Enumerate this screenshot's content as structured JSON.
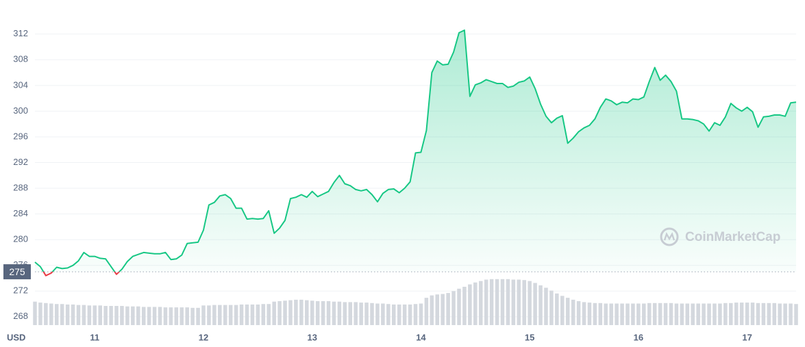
{
  "chart_data": {
    "type": "line",
    "axis_unit": "USD",
    "watermark": "CoinMarketCap",
    "baseline": 275,
    "grid": true,
    "x": [
      10.45,
      10.5,
      10.55,
      10.6,
      10.65,
      10.7,
      10.75,
      10.8,
      10.85,
      10.9,
      10.95,
      11.0,
      11.05,
      11.1,
      11.15,
      11.2,
      11.25,
      11.3,
      11.35,
      11.4,
      11.45,
      11.5,
      11.55,
      11.6,
      11.65,
      11.7,
      11.75,
      11.8,
      11.85,
      11.9,
      11.95,
      12.0,
      12.05,
      12.1,
      12.15,
      12.2,
      12.25,
      12.3,
      12.35,
      12.4,
      12.45,
      12.5,
      12.55,
      12.6,
      12.65,
      12.7,
      12.75,
      12.8,
      12.85,
      12.9,
      12.95,
      13.0,
      13.05,
      13.1,
      13.15,
      13.2,
      13.25,
      13.3,
      13.35,
      13.4,
      13.45,
      13.5,
      13.55,
      13.6,
      13.65,
      13.7,
      13.75,
      13.8,
      13.85,
      13.9,
      13.95,
      14.0,
      14.05,
      14.1,
      14.15,
      14.2,
      14.25,
      14.3,
      14.35,
      14.4,
      14.45,
      14.5,
      14.55,
      14.6,
      14.65,
      14.7,
      14.75,
      14.8,
      14.85,
      14.9,
      14.95,
      15.0,
      15.05,
      15.1,
      15.15,
      15.2,
      15.25,
      15.3,
      15.35,
      15.4,
      15.45,
      15.5,
      15.55,
      15.6,
      15.65,
      15.7,
      15.75,
      15.8,
      15.85,
      15.9,
      15.95,
      16.0,
      16.05,
      16.1,
      16.15,
      16.2,
      16.25,
      16.3,
      16.35,
      16.4,
      16.45,
      16.5,
      16.55,
      16.6,
      16.65,
      16.7,
      16.75,
      16.8,
      16.85,
      16.9,
      16.95,
      17.0,
      17.05,
      17.1,
      17.15,
      17.2,
      17.25,
      17.3,
      17.35,
      17.4,
      17.45
    ],
    "series": [
      {
        "color": "#16c784",
        "negative_color": "#ea3943",
        "values": [
          276.5,
          275.8,
          274.4,
          274.8,
          275.7,
          275.5,
          275.6,
          276.0,
          276.7,
          278.0,
          277.4,
          277.4,
          277.1,
          277.0,
          275.8,
          274.6,
          275.4,
          276.6,
          277.4,
          277.7,
          278.0,
          277.9,
          277.8,
          277.8,
          278.0,
          276.9,
          277.0,
          277.6,
          279.4,
          279.5,
          279.6,
          281.5,
          285.4,
          285.8,
          286.8,
          287.0,
          286.4,
          284.9,
          284.9,
          283.2,
          283.3,
          283.2,
          283.3,
          284.5,
          281.0,
          281.8,
          283.0,
          286.4,
          286.6,
          287.0,
          286.6,
          287.5,
          286.7,
          287.1,
          287.5,
          288.9,
          290.0,
          288.7,
          288.4,
          287.8,
          287.6,
          287.8,
          287.0,
          285.9,
          287.2,
          287.8,
          287.9,
          287.3,
          288.0,
          289.0,
          293.5,
          293.6,
          297.0,
          306.0,
          307.8,
          307.2,
          307.3,
          309.2,
          312.2,
          312.6,
          302.3,
          304.1,
          304.4,
          304.9,
          304.6,
          304.3,
          304.3,
          303.7,
          303.9,
          304.5,
          304.7,
          305.3,
          303.5,
          301.1,
          299.2,
          298.2,
          298.9,
          299.3,
          295.0,
          295.8,
          296.8,
          297.4,
          297.8,
          298.8,
          300.6,
          301.9,
          301.6,
          301.0,
          301.4,
          301.3,
          301.9,
          301.8,
          302.2,
          304.6,
          306.8,
          304.8,
          305.6,
          304.6,
          303.1,
          298.8,
          298.8,
          298.7,
          298.5,
          298.0,
          296.9,
          298.2,
          297.8,
          299.1,
          301.2,
          300.5,
          300.0,
          300.6,
          299.9,
          297.5,
          299.1,
          299.2,
          299.4,
          299.4,
          299.2,
          301.3,
          301.4
        ]
      },
      {
        "type": "bar",
        "axis": "y2",
        "color": "#d4d8de",
        "values": [
          49,
          47,
          46,
          45,
          44,
          44,
          43,
          43,
          42,
          42,
          41,
          41,
          41,
          40,
          40,
          40,
          40,
          39,
          39,
          39,
          38,
          38,
          38,
          38,
          37,
          37,
          37,
          37,
          37,
          36,
          36,
          41,
          41,
          42,
          42,
          42,
          42,
          42,
          43,
          43,
          43,
          43,
          44,
          44,
          49,
          50,
          51,
          52,
          53,
          53,
          52,
          51,
          50,
          50,
          50,
          49,
          49,
          48,
          48,
          48,
          47,
          47,
          46,
          45,
          45,
          44,
          43,
          43,
          43,
          43,
          44,
          45,
          57,
          62,
          64,
          65,
          67,
          71,
          76,
          80,
          85,
          89,
          92,
          95,
          96,
          96,
          96,
          96,
          95,
          95,
          94,
          92,
          88,
          83,
          78,
          72,
          66,
          61,
          57,
          53,
          50,
          48,
          47,
          46,
          46,
          45,
          45,
          45,
          45,
          45,
          45,
          45,
          45,
          46,
          46,
          46,
          46,
          46,
          45,
          45,
          45,
          45,
          45,
          45,
          45,
          45,
          45,
          46,
          46,
          47,
          47,
          47,
          47,
          46,
          46,
          46,
          46,
          45,
          45,
          45,
          44
        ]
      }
    ],
    "xlim": [
      10.45,
      17.45
    ],
    "xticks": [
      11,
      12,
      13,
      14,
      15,
      16,
      17
    ],
    "ylim": [
      266.7,
      317.3
    ],
    "yticks": [
      268,
      272,
      276,
      280,
      284,
      288,
      292,
      296,
      300,
      304,
      308,
      312
    ],
    "y2lim": [
      0,
      100
    ]
  }
}
